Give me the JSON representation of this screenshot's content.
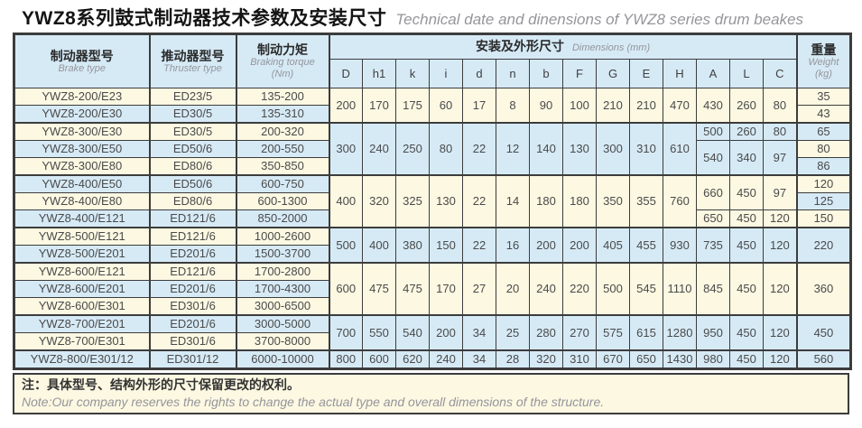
{
  "title": {
    "zh": "YWZ8系列鼓式制动器技术参数及安装尺寸",
    "en": "Technical date and dinensions of YWZ8 series drum beakes"
  },
  "header": {
    "brake_type": {
      "zh": "制动器型号",
      "en": "Brake type"
    },
    "thruster_type": {
      "zh": "推动器型号",
      "en": "Thruster type"
    },
    "braking_torque": {
      "zh": "制动力矩",
      "en": "Braking torque",
      "unit": "(Nm)"
    },
    "dimensions_group": {
      "zh": "安装及外形尺寸",
      "en": "Dimensions (mm)"
    },
    "weight": {
      "zh": "重量",
      "en": "Weight",
      "unit": "(kg)"
    }
  },
  "dim_columns": [
    "D",
    "h1",
    "k",
    "i",
    "d",
    "n",
    "b",
    "F",
    "G",
    "E",
    "H",
    "A",
    "L",
    "C"
  ],
  "colors": {
    "cream": "#fcf8e2",
    "blue": "#d6eaf6",
    "border": "#3c3c3c"
  },
  "table": {
    "dim_keys": [
      "D",
      "h1",
      "k",
      "i",
      "d",
      "n",
      "b",
      "F",
      "G",
      "E",
      "H"
    ],
    "alc_keys": [
      "A",
      "L",
      "C"
    ],
    "rows": [
      {
        "model": "YWZ8-200/E23",
        "thruster": "ED23/5",
        "torque": "135-200",
        "stripe": "cream",
        "block_start": false,
        "dims": {
          "rowspan": 2,
          "color": "cream",
          "values": [
            200,
            170,
            175,
            60,
            17,
            8,
            90,
            100,
            210,
            210,
            470
          ]
        },
        "alc": {
          "rowspan": 2,
          "color": "cream",
          "values": [
            430,
            260,
            80
          ]
        },
        "weight": {
          "rowspan": 1,
          "color": "cream",
          "value": 35
        }
      },
      {
        "model": "YWZ8-200/E30",
        "thruster": "ED30/5",
        "torque": "135-310",
        "stripe": "blue",
        "block_start": false,
        "weight": {
          "rowspan": 1,
          "color": "cream",
          "value": 43
        }
      },
      {
        "model": "YWZ8-300/E30",
        "thruster": "ED30/5",
        "torque": "200-320",
        "stripe": "cream",
        "block_start": true,
        "dims": {
          "rowspan": 3,
          "color": "blue",
          "values": [
            300,
            240,
            250,
            80,
            22,
            12,
            140,
            130,
            300,
            310,
            610
          ]
        },
        "alc": {
          "rowspan": 1,
          "color": "blue",
          "values": [
            500,
            260,
            80
          ]
        },
        "weight": {
          "rowspan": 1,
          "color": "blue",
          "value": 65
        }
      },
      {
        "model": "YWZ8-300/E50",
        "thruster": "ED50/6",
        "torque": "200-550",
        "stripe": "blue",
        "block_start": false,
        "alc": {
          "rowspan": 2,
          "color": "blue",
          "values": [
            540,
            340,
            97
          ]
        },
        "weight": {
          "rowspan": 1,
          "color": "cream",
          "value": 80
        }
      },
      {
        "model": "YWZ8-300/E80",
        "thruster": "ED80/6",
        "torque": "350-850",
        "stripe": "cream",
        "block_start": false,
        "weight": {
          "rowspan": 1,
          "color": "blue",
          "value": 86
        }
      },
      {
        "model": "YWZ8-400/E50",
        "thruster": "ED50/6",
        "torque": "600-750",
        "stripe": "blue",
        "block_start": true,
        "dims": {
          "rowspan": 3,
          "color": "cream",
          "values": [
            400,
            320,
            325,
            130,
            22,
            14,
            180,
            180,
            350,
            355,
            760
          ]
        },
        "alc": {
          "rowspan": 2,
          "color": "cream",
          "values": [
            660,
            450,
            97
          ]
        },
        "weight": {
          "rowspan": 1,
          "color": "cream",
          "value": 120
        }
      },
      {
        "model": "YWZ8-400/E80",
        "thruster": "ED80/6",
        "torque": "600-1300",
        "stripe": "cream",
        "block_start": false,
        "weight": {
          "rowspan": 1,
          "color": "blue",
          "value": 125
        }
      },
      {
        "model": "YWZ8-400/E121",
        "thruster": "ED121/6",
        "torque": "850-2000",
        "stripe": "blue",
        "block_start": false,
        "alc": {
          "rowspan": 1,
          "color": "cream",
          "values": [
            650,
            450,
            120
          ]
        },
        "weight": {
          "rowspan": 1,
          "color": "cream",
          "value": 150
        }
      },
      {
        "model": "YWZ8-500/E121",
        "thruster": "ED121/6",
        "torque": "1000-2600",
        "stripe": "cream",
        "block_start": true,
        "dims": {
          "rowspan": 2,
          "color": "blue",
          "values": [
            500,
            400,
            380,
            150,
            22,
            16,
            200,
            200,
            405,
            455,
            930
          ]
        },
        "alc": {
          "rowspan": 2,
          "color": "blue",
          "values": [
            735,
            450,
            120
          ]
        },
        "weight": {
          "rowspan": 2,
          "color": "blue",
          "value": 220
        }
      },
      {
        "model": "YWZ8-500/E201",
        "thruster": "ED201/6",
        "torque": "1500-3700",
        "stripe": "blue",
        "block_start": false
      },
      {
        "model": "YWZ8-600/E121",
        "thruster": "ED121/6",
        "torque": "1700-2800",
        "stripe": "cream",
        "block_start": true,
        "dims": {
          "rowspan": 3,
          "color": "cream",
          "values": [
            600,
            475,
            475,
            170,
            27,
            20,
            240,
            220,
            500,
            545,
            1110
          ]
        },
        "alc": {
          "rowspan": 3,
          "color": "cream",
          "values": [
            845,
            450,
            120
          ]
        },
        "weight": {
          "rowspan": 3,
          "color": "cream",
          "value": 360
        }
      },
      {
        "model": "YWZ8-600/E201",
        "thruster": "ED201/6",
        "torque": "1700-4300",
        "stripe": "blue",
        "block_start": false
      },
      {
        "model": "YWZ8-600/E301",
        "thruster": "ED301/6",
        "torque": "3000-6500",
        "stripe": "cream",
        "block_start": false
      },
      {
        "model": "YWZ8-700/E201",
        "thruster": "ED201/6",
        "torque": "3000-5000",
        "stripe": "blue",
        "block_start": true,
        "dims": {
          "rowspan": 2,
          "color": "blue",
          "values": [
            700,
            550,
            540,
            200,
            34,
            25,
            280,
            270,
            575,
            615,
            1280
          ]
        },
        "alc": {
          "rowspan": 2,
          "color": "blue",
          "values": [
            950,
            450,
            120
          ]
        },
        "weight": {
          "rowspan": 2,
          "color": "blue",
          "value": 450
        }
      },
      {
        "model": "YWZ8-700/E301",
        "thruster": "ED301/6",
        "torque": "3700-8000",
        "stripe": "cream",
        "block_start": false
      },
      {
        "model": "YWZ8-800/E301/12",
        "thruster": "ED301/12",
        "torque": "6000-10000",
        "stripe": "blue",
        "block_start": true,
        "dims": {
          "rowspan": 1,
          "color": "blue",
          "values": [
            800,
            600,
            620,
            240,
            34,
            28,
            320,
            310,
            670,
            650,
            1430
          ]
        },
        "alc": {
          "rowspan": 1,
          "color": "blue",
          "values": [
            980,
            450,
            120
          ]
        },
        "weight": {
          "rowspan": 1,
          "color": "blue",
          "value": 560
        }
      }
    ]
  },
  "note": {
    "zh": "注：具体型号、结构外形的尺寸保留更改的权利。",
    "en": "Note:Our company reserves the rights to change the actual type and overall dimensions of the structure."
  }
}
